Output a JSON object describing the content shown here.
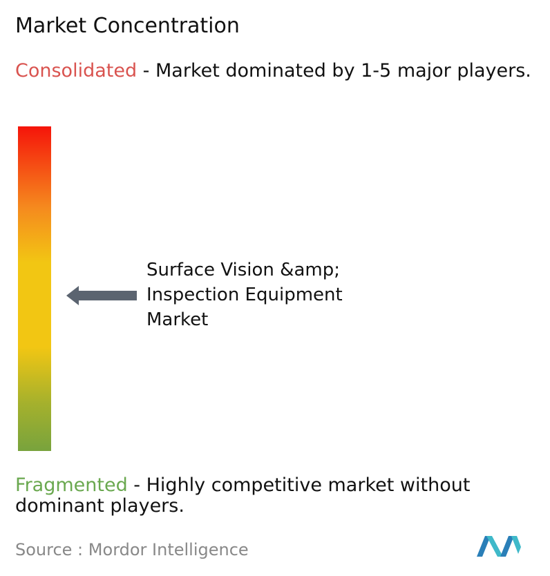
{
  "title": "Market Concentration",
  "consolidated": {
    "label": "Consolidated",
    "description": " - Market dominated by 1-5 major players."
  },
  "market_label": "Surface Vision &amp; Inspection Equipment Market",
  "fragmented": {
    "label": "Fragmented",
    "description": " - Highly competitive market without dominant players."
  },
  "source": {
    "label": "Source :",
    "name": "Mordor Intelligence"
  }
}
